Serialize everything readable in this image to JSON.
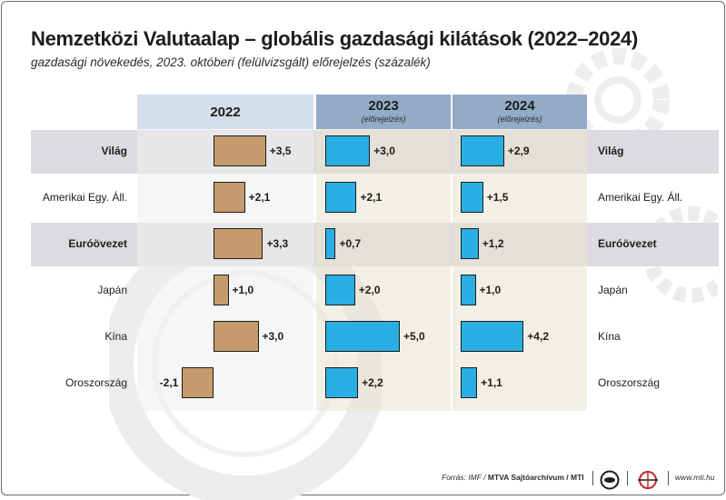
{
  "title": "Nemzetközi Valutaalap – globális gazdasági kilátások (2022–2024)",
  "subtitle": "gazdasági növekedés, 2023. októberi (felülvizsgált) előrejelzés (százalék)",
  "colors": {
    "bar_2022": "#c59b6d",
    "bar_forecast": "#2aaee3",
    "header_dark": "#93abc6",
    "header_light": "#d3dfed",
    "row_band": "#dedbe0"
  },
  "chart_data": {
    "type": "bar",
    "orientation": "horizontal",
    "title": "Nemzetközi Valutaalap – globális gazdasági kilátások (2022–2024)",
    "subtitle": "gazdasági növekedés, 2023. októberi (felülvizsgált) előrejelzés (százalék)",
    "categories": [
      "Világ",
      "Amerikai Egy. Áll.",
      "Euróövezet",
      "Japán",
      "Kína",
      "Oroszország"
    ],
    "bold_categories": [
      "Világ",
      "Euróövezet"
    ],
    "series": [
      {
        "name": "2022",
        "note": "",
        "values": [
          3.5,
          2.1,
          3.3,
          1.0,
          3.0,
          -2.1
        ],
        "labels": [
          "+3,5",
          "+2,1",
          "+3,3",
          "+1,0",
          "+3,0",
          "-2,1"
        ]
      },
      {
        "name": "2023",
        "note": "(előrejelzés)",
        "values": [
          3.0,
          2.1,
          0.7,
          2.0,
          5.0,
          2.2
        ],
        "labels": [
          "+3,0",
          "+2,1",
          "+0,7",
          "+2,0",
          "+5,0",
          "+2,2"
        ]
      },
      {
        "name": "2024",
        "note": "(előrejelzés)",
        "values": [
          2.9,
          1.5,
          1.2,
          1.0,
          4.2,
          1.1
        ],
        "labels": [
          "+2,9",
          "+1,5",
          "+1,2",
          "+1,0",
          "+4,2",
          "+1,1"
        ]
      }
    ],
    "legend": "none",
    "grid": false
  },
  "footer": {
    "source_prefix": "Forrás: IMF / ",
    "source_agency": "MTVA Sajtóarchívum / MTI",
    "url": "www.mti.hu"
  }
}
